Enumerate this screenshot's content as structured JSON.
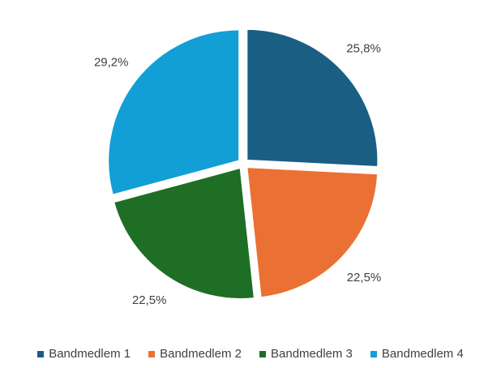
{
  "chart_data": {
    "type": "pie",
    "categories": [
      "Bandmedlem 1",
      "Bandmedlem 2",
      "Bandmedlem 3",
      "Bandmedlem 4"
    ],
    "values": [
      25.8,
      22.5,
      22.5,
      29.2
    ],
    "labels": [
      "25,8%",
      "22,5%",
      "22,5%",
      "29,2%"
    ],
    "colors": [
      "#1a5e84",
      "#ea7133",
      "#1e6e25",
      "#119fd6"
    ],
    "exploded": true,
    "start_angle": "12 o'clock, clockwise",
    "legend": "bottom"
  }
}
